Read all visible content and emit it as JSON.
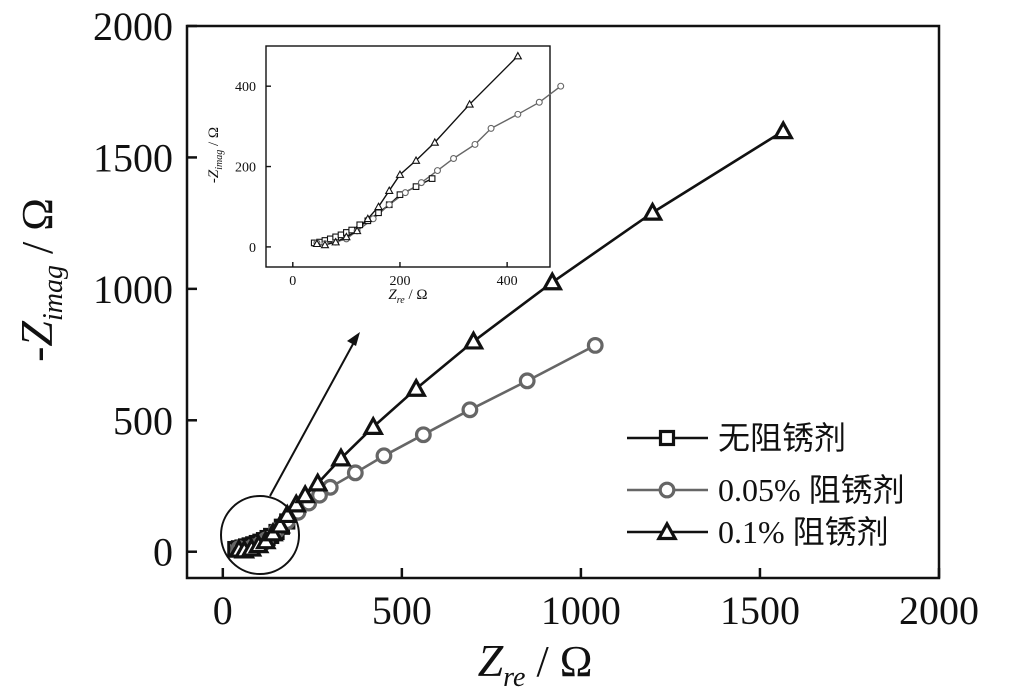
{
  "chart_data": [
    {
      "type": "line",
      "title": "",
      "xlabel": "Z",
      "xlabel_sub": "re",
      "xlabel_unit": " / Ω",
      "ylabel": "-Z",
      "ylabel_sub": "imag",
      "ylabel_unit": " / Ω",
      "xlim": [
        -100,
        2000
      ],
      "ylim": [
        -100,
        2000
      ],
      "x_ticks": [
        "0",
        "500",
        "1000",
        "1500",
        "2000"
      ],
      "y_ticks": [
        "0",
        "500",
        "1000",
        "1500",
        "2000"
      ],
      "legend_position": "bottom-right",
      "series": [
        {
          "name": "无阻锈剂",
          "marker": "square",
          "x": [
            35,
            45,
            55,
            65,
            75,
            85,
            95,
            105,
            115,
            125,
            135,
            150,
            165,
            180
          ],
          "y": [
            10,
            13,
            16,
            20,
            24,
            28,
            33,
            38,
            44,
            52,
            60,
            75,
            95,
            115
          ]
        },
        {
          "name": "0.05% 阻锈剂",
          "marker": "circle",
          "x": [
            45,
            60,
            80,
            100,
            120,
            150,
            180,
            210,
            240,
            270,
            300,
            370,
            450,
            560,
            690,
            850,
            1040
          ],
          "y": [
            12,
            8,
            15,
            25,
            45,
            80,
            115,
            150,
            185,
            215,
            245,
            300,
            365,
            445,
            540,
            650,
            785
          ]
        },
        {
          "name": "0.1% 阻锈剂",
          "marker": "triangle",
          "x": [
            45,
            60,
            80,
            100,
            120,
            140,
            160,
            180,
            205,
            230,
            265,
            330,
            420,
            540,
            700,
            920,
            1200,
            1565
          ],
          "y": [
            8,
            5,
            12,
            25,
            40,
            70,
            100,
            140,
            180,
            215,
            260,
            355,
            475,
            620,
            800,
            1025,
            1290,
            1600
          ]
        }
      ]
    },
    {
      "type": "line",
      "title": "",
      "xlabel": "Z",
      "xlabel_sub": "re",
      "xlabel_unit": " / Ω",
      "ylabel": "-Z",
      "ylabel_sub": "imag",
      "ylabel_unit": " / Ω",
      "xlim": [
        -50,
        480
      ],
      "ylim": [
        -50,
        500
      ],
      "x_ticks": [
        "0",
        "200",
        "400"
      ],
      "y_ticks": [
        "0",
        "200",
        "400"
      ],
      "series": [
        {
          "name": "无阻锈剂",
          "marker": "square",
          "x": [
            40,
            50,
            60,
            70,
            80,
            90,
            100,
            110,
            125,
            140,
            160,
            180,
            200,
            230,
            260
          ],
          "y": [
            10,
            12,
            16,
            20,
            25,
            30,
            36,
            42,
            55,
            65,
            85,
            105,
            130,
            150,
            170
          ]
        },
        {
          "name": "0.05% 阻锈剂",
          "marker": "circle",
          "x": [
            45,
            60,
            80,
            100,
            120,
            150,
            180,
            210,
            240,
            270,
            300,
            340,
            370,
            420,
            460,
            500
          ],
          "y": [
            10,
            8,
            12,
            20,
            40,
            70,
            105,
            135,
            160,
            190,
            220,
            255,
            295,
            330,
            360,
            400
          ]
        },
        {
          "name": "0.1% 阻锈剂",
          "marker": "triangle",
          "x": [
            45,
            60,
            80,
            100,
            120,
            140,
            160,
            180,
            200,
            230,
            265,
            330,
            420
          ],
          "y": [
            8,
            5,
            12,
            25,
            40,
            70,
            100,
            140,
            180,
            215,
            260,
            355,
            475
          ]
        }
      ]
    }
  ]
}
